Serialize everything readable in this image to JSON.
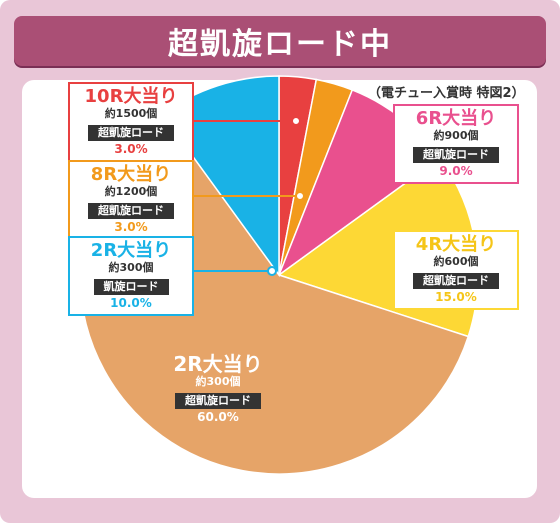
{
  "title": "超凱旋ロード中",
  "note": "（電チュー入賞時 特図2）",
  "colors": {
    "frame": "#e9c6d7",
    "title_bar": "#aa4f75",
    "slice_10r": "#e84040",
    "slice_8r": "#f29a1c",
    "slice_6r": "#e9508e",
    "slice_4r": "#fdd835",
    "slice_2r_60": "#e6a468",
    "slice_2r_10": "#19b2e6"
  },
  "chart_data": {
    "type": "pie",
    "title": "超凱旋ロード中",
    "subtitle": "（電チュー入賞時 特図2）",
    "start": "12 o'clock, clockwise",
    "slices": [
      {
        "label": "10R大当り",
        "count": "約1500個",
        "mode": "超凱旋ロード",
        "value": 3.0,
        "percent": "3.0%",
        "color": "#e84040"
      },
      {
        "label": "8R大当り",
        "count": "約1200個",
        "mode": "超凱旋ロード",
        "value": 3.0,
        "percent": "3.0%",
        "color": "#f29a1c"
      },
      {
        "label": "6R大当り",
        "count": "約900個",
        "mode": "超凱旋ロード",
        "value": 9.0,
        "percent": "9.0%",
        "color": "#e9508e"
      },
      {
        "label": "4R大当り",
        "count": "約600個",
        "mode": "超凱旋ロード",
        "value": 15.0,
        "percent": "15.0%",
        "color": "#fdd835"
      },
      {
        "label": "2R大当り",
        "count": "約300個",
        "mode": "超凱旋ロード",
        "value": 60.0,
        "percent": "60.0%",
        "color": "#e6a468"
      },
      {
        "label": "2R大当り",
        "count": "約300個",
        "mode": "凱旋ロード",
        "value": 10.0,
        "percent": "10.0%",
        "color": "#19b2e6"
      }
    ]
  }
}
